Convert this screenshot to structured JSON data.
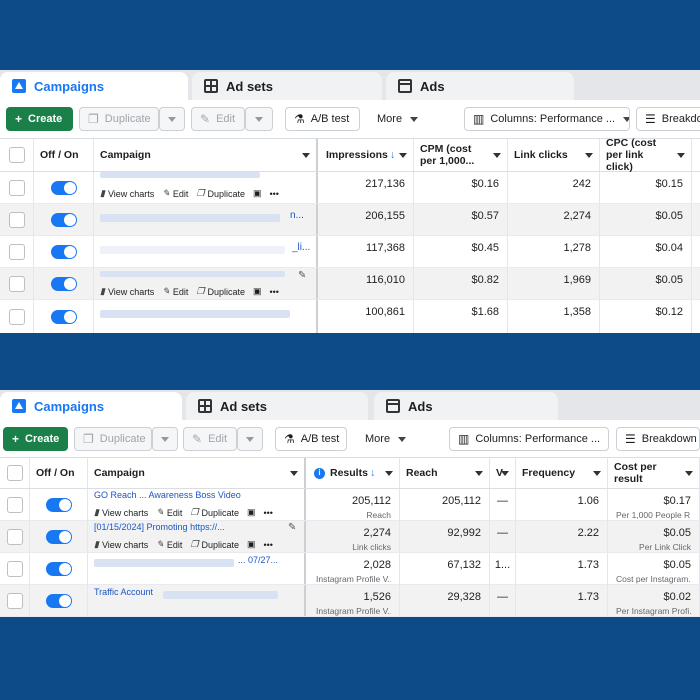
{
  "tabs": {
    "campaigns": "Campaigns",
    "ad_sets": "Ad sets",
    "ads": "Ads"
  },
  "toolbar": {
    "create": "Create",
    "duplicate": "Duplicate",
    "edit": "Edit",
    "ab_test": "A/B test",
    "more": "More",
    "columns": "Columns: Performance ...",
    "breakdown_1": "Breakdo",
    "breakdown_2": "Breakdown"
  },
  "row_actions": {
    "view_charts": "View charts",
    "edit": "Edit",
    "duplicate": "Duplicate",
    "more": "•••"
  },
  "table1": {
    "headers": {
      "off_on": "Off / On",
      "campaign": "Campaign",
      "impressions": "Impressions",
      "cpm": "CPM (cost per 1,000...",
      "link_clicks": "Link clicks",
      "cpc": "CPC (cost per link click)"
    },
    "rows": [
      {
        "impressions": "217,136",
        "cpm": "$0.16",
        "link_clicks": "242",
        "cpc": "$0.15",
        "frag": ""
      },
      {
        "impressions": "206,155",
        "cpm": "$0.57",
        "link_clicks": "2,274",
        "cpc": "$0.05",
        "frag": "n..."
      },
      {
        "impressions": "117,368",
        "cpm": "$0.45",
        "link_clicks": "1,278",
        "cpc": "$0.04",
        "frag": "_li..."
      },
      {
        "impressions": "116,010",
        "cpm": "$0.82",
        "link_clicks": "1,969",
        "cpc": "$0.05",
        "frag": ""
      },
      {
        "impressions": "100,861",
        "cpm": "$1.68",
        "link_clicks": "1,358",
        "cpc": "$0.12",
        "frag": ""
      }
    ]
  },
  "table2": {
    "headers": {
      "off_on": "Off / On",
      "campaign": "Campaign",
      "results": "Results",
      "reach": "Reach",
      "v": "V",
      "frequency": "Frequency",
      "cost_per_result": "Cost per result"
    },
    "rows": [
      {
        "campaign": "GO Reach ... Awareness Boss Video",
        "results": "205,112",
        "results_sub": "Reach",
        "reach": "205,112",
        "v": "—",
        "frequency": "1.06",
        "cost": "$0.17",
        "cost_sub": "Per 1,000 People R..."
      },
      {
        "campaign": "[01/15/2024] Promoting https://...",
        "results": "2,274",
        "results_sub": "Link clicks",
        "reach": "92,992",
        "v": "—",
        "frequency": "2.22",
        "cost": "$0.05",
        "cost_sub": "Per Link Click"
      },
      {
        "campaign": "... 07/27...",
        "results": "2,028",
        "results_sub": "Instagram Profile V...",
        "reach": "67,132",
        "v": "1...",
        "frequency": "1.73",
        "cost": "$0.05",
        "cost_sub": "Cost per Instagram..."
      },
      {
        "campaign": "Traffic Account",
        "results": "1,526",
        "results_sub": "Instagram Profile V...",
        "reach": "29,328",
        "v": "—",
        "frequency": "1.73",
        "cost": "$0.02",
        "cost_sub": "Per Instagram Profi..."
      }
    ]
  },
  "colors": {
    "accent": "#1877f2",
    "create": "#1a7f48",
    "background": "#0d4a88"
  }
}
